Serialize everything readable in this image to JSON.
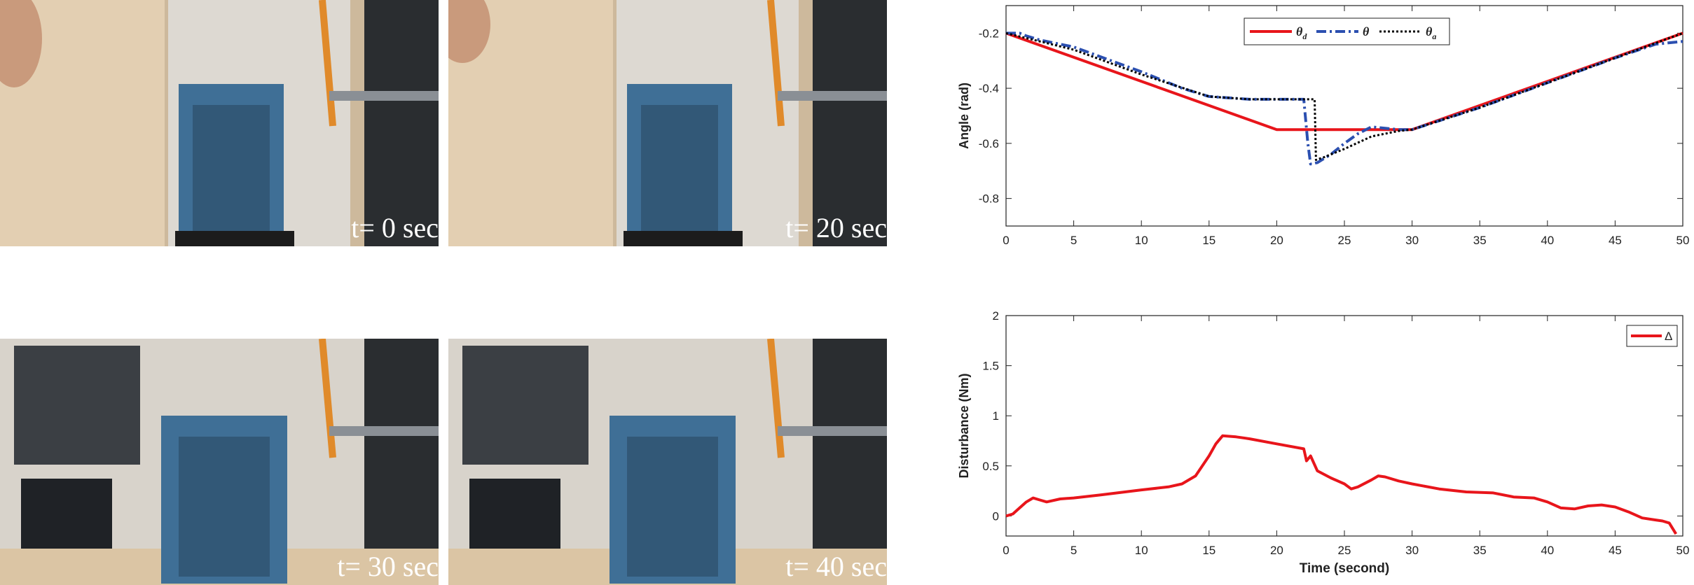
{
  "photos": {
    "top_left": "t= 0 sec",
    "top_right": "t= 20 sec",
    "bottom_left": "t= 30 sec",
    "bottom_right": "t= 40 sec"
  },
  "colors": {
    "theta_d": "#e8151b",
    "theta": "#2b4fb0",
    "theta_a": "#000000",
    "delta": "#e8151b"
  },
  "chart_data": [
    {
      "type": "line",
      "title": "",
      "xlabel": "",
      "ylabel": "Angle (rad)",
      "xlim": [
        0,
        50
      ],
      "ylim": [
        -0.9,
        -0.1
      ],
      "xticks": [
        0,
        5,
        10,
        15,
        20,
        25,
        30,
        35,
        40,
        45,
        50
      ],
      "yticks": [
        -0.2,
        -0.4,
        -0.6,
        -0.8
      ],
      "legend_position": "top-center",
      "series": [
        {
          "name": "θd",
          "style": "solid",
          "x": [
            0,
            20,
            30,
            50
          ],
          "y": [
            -0.2,
            -0.55,
            -0.55,
            -0.2
          ]
        },
        {
          "name": "θ",
          "style": "dashdot",
          "x": [
            0,
            1,
            1.5,
            2.5,
            5,
            10,
            13,
            15,
            18,
            21,
            22,
            22.3,
            22.5,
            23,
            24,
            25,
            26,
            27,
            28,
            29,
            30,
            35,
            40,
            45,
            48,
            50
          ],
          "y": [
            -0.2,
            -0.2,
            -0.21,
            -0.225,
            -0.25,
            -0.34,
            -0.4,
            -0.43,
            -0.44,
            -0.44,
            -0.44,
            -0.6,
            -0.675,
            -0.67,
            -0.64,
            -0.6,
            -0.565,
            -0.54,
            -0.545,
            -0.55,
            -0.55,
            -0.47,
            -0.38,
            -0.29,
            -0.24,
            -0.23
          ]
        },
        {
          "name": "θa",
          "style": "dotted",
          "x": [
            0,
            5,
            10,
            15,
            18,
            22,
            22.8,
            22.9,
            23.5,
            25,
            27,
            29,
            30,
            35,
            40,
            45,
            50
          ],
          "y": [
            -0.2,
            -0.26,
            -0.35,
            -0.43,
            -0.44,
            -0.44,
            -0.44,
            -0.66,
            -0.65,
            -0.62,
            -0.575,
            -0.555,
            -0.55,
            -0.47,
            -0.38,
            -0.29,
            -0.2
          ]
        }
      ]
    },
    {
      "type": "line",
      "title": "",
      "xlabel": "Time (second)",
      "ylabel": "Disturbance (Nm)",
      "xlim": [
        0,
        50
      ],
      "ylim": [
        -0.2,
        2
      ],
      "xticks": [
        0,
        5,
        10,
        15,
        20,
        25,
        30,
        35,
        40,
        45,
        50
      ],
      "yticks": [
        0,
        0.5,
        1,
        1.5,
        2
      ],
      "legend_position": "top-right",
      "series": [
        {
          "name": "Δ",
          "style": "solid",
          "x": [
            0,
            0.5,
            1,
            1.5,
            2,
            2.5,
            3,
            4,
            5,
            7,
            10,
            12,
            13,
            14,
            15,
            15.5,
            16,
            17,
            18,
            20,
            22,
            22.2,
            22.5,
            23,
            24,
            25,
            25.5,
            26,
            27,
            27.5,
            28,
            29,
            30,
            32,
            34,
            36,
            37.5,
            39,
            40,
            41,
            42,
            43,
            44,
            45,
            46,
            47,
            48,
            48.5,
            49,
            49.5
          ],
          "y": [
            0,
            0.02,
            0.08,
            0.14,
            0.18,
            0.16,
            0.14,
            0.17,
            0.18,
            0.21,
            0.26,
            0.29,
            0.32,
            0.4,
            0.6,
            0.72,
            0.8,
            0.79,
            0.77,
            0.72,
            0.67,
            0.55,
            0.6,
            0.45,
            0.38,
            0.32,
            0.27,
            0.29,
            0.36,
            0.4,
            0.39,
            0.35,
            0.32,
            0.27,
            0.24,
            0.23,
            0.19,
            0.18,
            0.14,
            0.08,
            0.07,
            0.1,
            0.11,
            0.09,
            0.04,
            -0.02,
            -0.04,
            -0.05,
            -0.07,
            -0.18
          ]
        }
      ]
    }
  ]
}
